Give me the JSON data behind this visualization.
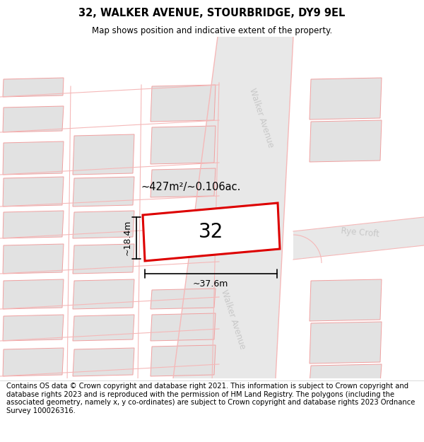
{
  "title": "32, WALKER AVENUE, STOURBRIDGE, DY9 9EL",
  "subtitle": "Map shows position and indicative extent of the property.",
  "footer": "Contains OS data © Crown copyright and database right 2021. This information is subject to Crown copyright and database rights 2023 and is reproduced with the permission of HM Land Registry. The polygons (including the associated geometry, namely x, y co-ordinates) are subject to Crown copyright and database rights 2023 Ordnance Survey 100026316.",
  "area_label": "~427m²/~0.106ac.",
  "width_label": "~37.6m",
  "height_label": "~18.4m",
  "plot_number": "32",
  "map_bg": "#ffffff",
  "road_fill": "#e8e8e8",
  "road_line": "#f5b8b8",
  "building_fill": "#e2e2e2",
  "building_line": "#f0a0a0",
  "plot_color": "#dd0000",
  "label_color": "#c8c8c8",
  "title_fontsize": 10.5,
  "subtitle_fontsize": 8.5,
  "footer_fontsize": 7.2
}
